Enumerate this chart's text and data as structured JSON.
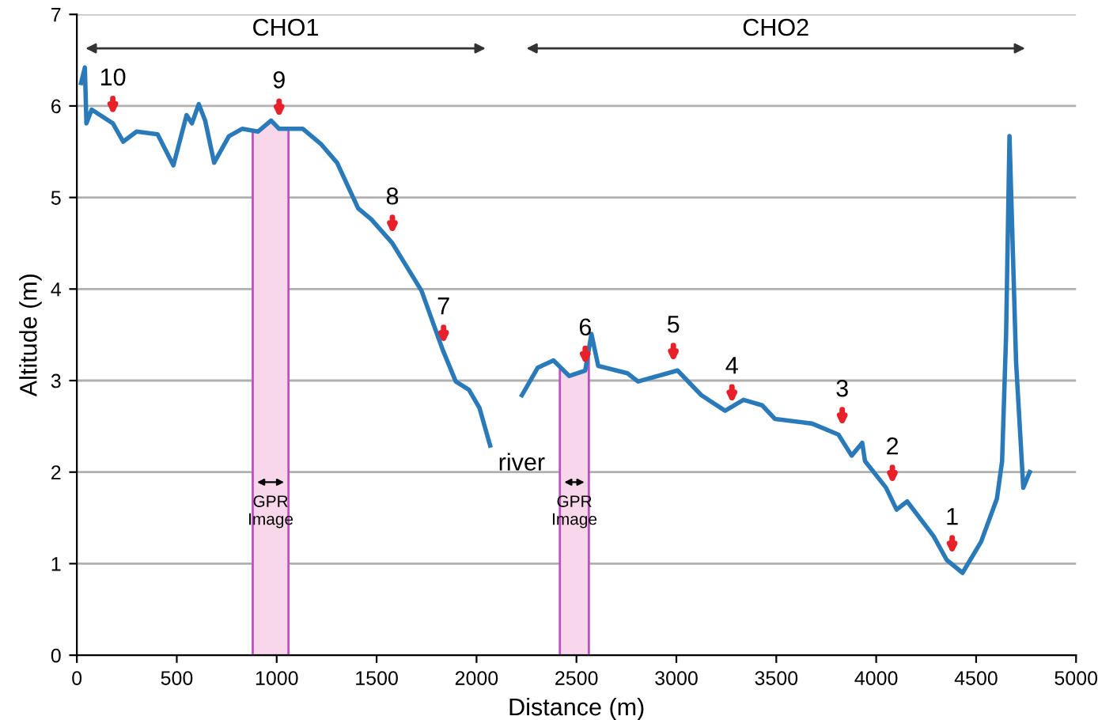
{
  "chart_data": {
    "type": "line",
    "xlabel": "Distance (m)",
    "ylabel": "Altitude (m)",
    "xlim": [
      0,
      5000
    ],
    "ylim": [
      0,
      7
    ],
    "xticks": [
      0,
      500,
      1000,
      1500,
      2000,
      2500,
      3000,
      3500,
      4000,
      4500,
      5000
    ],
    "yticks": [
      0,
      1,
      2,
      3,
      4,
      5,
      6,
      7
    ],
    "grid": "y",
    "legend": false,
    "marker": "none",
    "line_style": "solid",
    "series": [
      {
        "color": "#2a7ab9",
        "x": [
          21,
          40,
          48,
          74,
          180,
          232,
          299,
          404,
          483,
          549,
          576,
          610,
          642,
          687,
          761,
          827,
          906,
          972,
          1012,
          1131,
          1223,
          1302,
          1408,
          1474,
          1579,
          1725,
          1830,
          1896,
          1962,
          2015,
          2068
        ],
        "values": [
          6.25,
          6.42,
          5.81,
          5.96,
          5.81,
          5.61,
          5.72,
          5.69,
          5.35,
          5.9,
          5.81,
          6.02,
          5.84,
          5.38,
          5.67,
          5.75,
          5.72,
          5.84,
          5.75,
          5.75,
          5.58,
          5.38,
          4.88,
          4.76,
          4.5,
          3.98,
          3.34,
          2.99,
          2.9,
          2.7,
          2.29
        ]
      },
      {
        "color": "#2a7ab9",
        "x": [
          2227,
          2306,
          2385,
          2464,
          2544,
          2575,
          2609,
          2755,
          2808,
          3006,
          3125,
          3244,
          3336,
          3429,
          3494,
          3679,
          3811,
          3877,
          3930,
          3944,
          4049,
          4102,
          4155,
          4287,
          4353,
          4432,
          4525,
          4604,
          4630,
          4650,
          4667,
          4700,
          4736,
          4768
        ],
        "values": [
          2.84,
          3.14,
          3.22,
          3.05,
          3.11,
          3.51,
          3.16,
          3.08,
          2.99,
          3.11,
          2.84,
          2.67,
          2.79,
          2.73,
          2.58,
          2.53,
          2.41,
          2.18,
          2.32,
          2.12,
          1.83,
          1.59,
          1.68,
          1.3,
          1.04,
          0.9,
          1.24,
          1.71,
          2.12,
          3.5,
          5.67,
          3.2,
          1.83,
          2.0
        ]
      }
    ],
    "bands": [
      {
        "axis": "x",
        "from": 880,
        "to": 1059,
        "label": "GPR\nImage",
        "color": "#f8d7eb"
      },
      {
        "axis": "x",
        "from": 2417,
        "to": 2562,
        "label": "GPR\nImage",
        "color": "#f8d7eb"
      }
    ],
    "annotations": [
      "CHO1",
      "CHO2",
      {
        "text": "10",
        "x": 180,
        "y": 5.85
      },
      {
        "text": "9",
        "x": 1012,
        "y": 5.82
      },
      {
        "text": "8",
        "x": 1579,
        "y": 4.55
      },
      {
        "text": "7",
        "x": 1835,
        "y": 3.35
      },
      {
        "text": "6",
        "x": 2544,
        "y": 3.12
      },
      {
        "text": "5",
        "x": 2985,
        "y": 3.15
      },
      {
        "text": "4",
        "x": 3278,
        "y": 2.7
      },
      {
        "text": "3",
        "x": 3830,
        "y": 2.45
      },
      {
        "text": "2",
        "x": 4081,
        "y": 1.82
      },
      {
        "text": "1",
        "x": 4380,
        "y": 1.05
      },
      {
        "text": "river",
        "x": 2068,
        "y": 2.29
      }
    ]
  }
}
